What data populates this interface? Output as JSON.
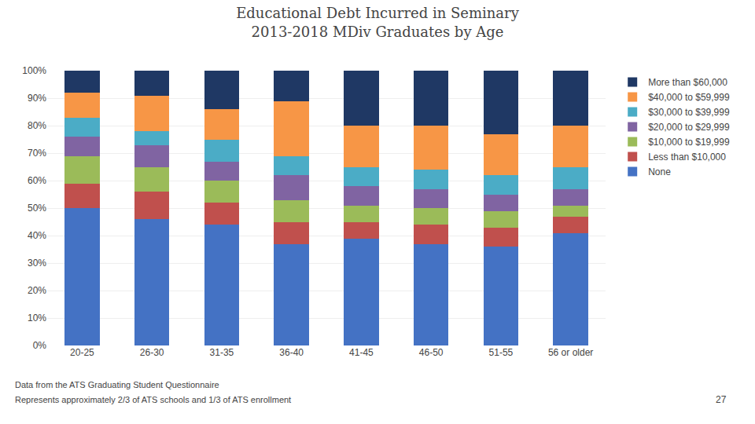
{
  "chart_data": {
    "type": "bar",
    "stacked": true,
    "title": "Educational Debt Incurred in Seminary\n2013-2018 MDiv Graduates by Age",
    "categories": [
      "20-25",
      "26-30",
      "31-35",
      "36-40",
      "41-45",
      "46-50",
      "51-55",
      "56 or older"
    ],
    "series": [
      {
        "name": "None",
        "color": "#4472C4",
        "values": [
          50,
          46,
          44,
          37,
          39,
          37,
          36,
          41
        ]
      },
      {
        "name": "Less than $10,000",
        "color": "#C0504D",
        "values": [
          9,
          10,
          8,
          8,
          6,
          7,
          7,
          6
        ]
      },
      {
        "name": "$10,000 to $19,999",
        "color": "#9BBB59",
        "values": [
          10,
          9,
          8,
          8,
          6,
          6,
          6,
          4
        ]
      },
      {
        "name": "$20,000 to $29,999",
        "color": "#8064A2",
        "values": [
          7,
          8,
          7,
          9,
          7,
          7,
          6,
          6
        ]
      },
      {
        "name": "$30,000 to $39,999",
        "color": "#4BACC6",
        "values": [
          7,
          5,
          8,
          7,
          7,
          7,
          7,
          8
        ]
      },
      {
        "name": "$40,000 to $59,999",
        "color": "#F79646",
        "values": [
          9,
          13,
          11,
          20,
          15,
          16,
          15,
          15
        ]
      },
      {
        "name": "More than $60,000",
        "color": "#1F3864",
        "values": [
          8,
          9,
          14,
          11,
          20,
          20,
          23,
          20
        ]
      }
    ],
    "ylim": [
      0,
      100
    ],
    "yticks": [
      {
        "value": 0,
        "label": "0%"
      },
      {
        "value": 10,
        "label": "10%"
      },
      {
        "value": 20,
        "label": "20%"
      },
      {
        "value": 30,
        "label": "30%"
      },
      {
        "value": 40,
        "label": "40%"
      },
      {
        "value": 50,
        "label": "50%"
      },
      {
        "value": 60,
        "label": "60%"
      },
      {
        "value": 70,
        "label": "70%"
      },
      {
        "value": 80,
        "label": "80%"
      },
      {
        "value": 90,
        "label": "90%"
      },
      {
        "value": 100,
        "label": "100%"
      }
    ],
    "grid": true,
    "legend": "right",
    "annotations": [
      "Data from the ATS Graduating Student Questionnaire",
      "Represents approximately 2/3 of ATS schools and 1/3 of ATS enrollment",
      "27"
    ]
  }
}
